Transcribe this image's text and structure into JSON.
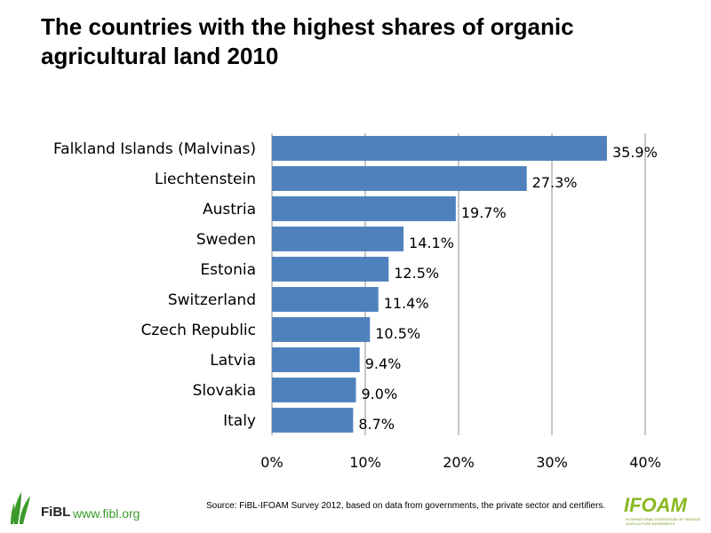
{
  "title": "The countries with the highest shares of organic agricultural land 2010",
  "footer": {
    "source": "Source: FiBL-IFOAM Survey 2012, based on data from governments, the private sector and certifiers.",
    "fibl_logo_text": "FiBL",
    "fibl_url": "www.fibl.org",
    "ifoam_logo_text": "IFOAM",
    "ifoam_subtitle": "INTERNATIONAL FEDERATION OF ORGANIC AGRICULTURE MOVEMENTS"
  },
  "colors": {
    "bar": "#4f81bd",
    "grid": "#8c8c8c",
    "fibl_green": "#3a9a2a",
    "ifoam_green": "#8ab820"
  },
  "chart_data": {
    "type": "bar",
    "orientation": "horizontal",
    "title": "The countries with the highest shares of organic agricultural land 2010",
    "categories": [
      "Falkland Islands (Malvinas)",
      "Liechtenstein",
      "Austria",
      "Sweden",
      "Estonia",
      "Switzerland",
      "Czech Republic",
      "Latvia",
      "Slovakia",
      "Italy"
    ],
    "values": [
      35.9,
      27.3,
      19.7,
      14.1,
      12.5,
      11.4,
      10.5,
      9.4,
      9.0,
      8.7
    ],
    "value_labels": [
      "35.9%",
      "27.3%",
      "19.7%",
      "14.1%",
      "12.5%",
      "11.4%",
      "10.5%",
      "9.4%",
      "9.0%",
      "8.7%"
    ],
    "xlim": [
      0,
      40
    ],
    "x_ticks": [
      0,
      10,
      20,
      30,
      40
    ],
    "x_tick_labels": [
      "0%",
      "10%",
      "20%",
      "30%",
      "40%"
    ],
    "xlabel": "",
    "ylabel": "",
    "grid": true,
    "legend": "none"
  }
}
